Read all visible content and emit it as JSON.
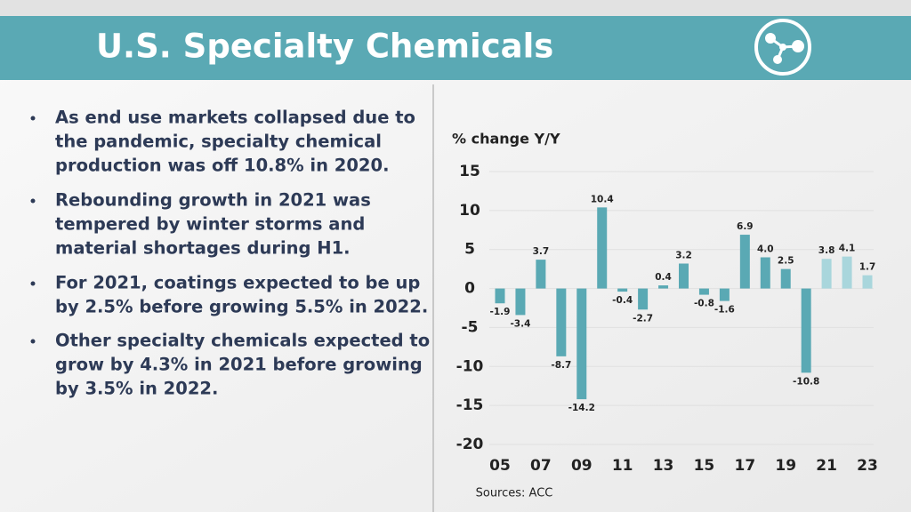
{
  "header": {
    "title": "U.S. Specialty Chemicals"
  },
  "bullets": [
    [
      "As end use markets collapsed due to",
      "the pandemic, specialty chemical",
      "production was off 10.8% in 2020."
    ],
    [
      "Rebounding growth in 2021 was",
      "tempered by winter storms and",
      "material shortages during H1."
    ],
    [
      "For 2021, coatings expected to be up",
      "by 2.5% before growing 5.5% in 2022."
    ],
    [
      "Other specialty chemicals expected to",
      "grow by 4.3% in 2021 before growing",
      "by 3.5% in 2022."
    ]
  ],
  "chart_data": {
    "type": "bar",
    "y_axis_label": "% change Y/Y",
    "categories": [
      "05",
      null,
      "07",
      null,
      "09",
      null,
      "11",
      null,
      "13",
      null,
      "15",
      null,
      "17",
      null,
      "19",
      null,
      "21",
      null,
      "23"
    ],
    "values": [
      -1.9,
      -3.4,
      3.7,
      -8.7,
      -14.2,
      10.4,
      -0.4,
      -2.7,
      0.4,
      3.2,
      -0.8,
      -1.6,
      6.9,
      4.0,
      2.5,
      -10.8,
      3.8,
      4.1,
      1.7
    ],
    "value_labels": [
      "-1.9",
      "-3.4",
      "3.7",
      "-8.7",
      "-14.2",
      "10.4",
      "-0.4",
      "-2.7",
      "0.4",
      "3.2",
      "-0.8",
      "-1.6",
      "6.9",
      "4.0",
      "2.5",
      "-10.8",
      "3.8",
      "4.1",
      "1.7"
    ],
    "colors": [
      "#5aa9b4",
      "#5aa9b4",
      "#5aa9b4",
      "#5aa9b4",
      "#5aa9b4",
      "#5aa9b4",
      "#5aa9b4",
      "#5aa9b4",
      "#5aa9b4",
      "#5aa9b4",
      "#5aa9b4",
      "#5aa9b4",
      "#5aa9b4",
      "#5aa9b4",
      "#5aa9b4",
      "#5aa9b4",
      "#a9d6dc",
      "#a9d6dc",
      "#a9d6dc"
    ],
    "ylim": [
      -20,
      15
    ],
    "yticks": [
      -20,
      -15,
      -10,
      -5,
      0,
      5,
      10,
      15
    ],
    "grid": true,
    "source": "Sources: ACC"
  }
}
